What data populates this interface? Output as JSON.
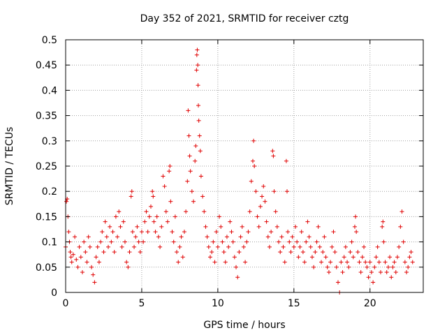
{
  "chart_data": {
    "type": "scatter",
    "title": "Day 352 of 2021, SRMTID for receiver cztg",
    "xlabel": "GPS time / hours",
    "ylabel": "SRMTID / TECUs",
    "xlim": [
      0,
      23.5
    ],
    "ylim": [
      0,
      0.5
    ],
    "xticks": [
      0,
      5,
      10,
      15,
      20
    ],
    "yticks": [
      0,
      0.05,
      0.1,
      0.15,
      0.2,
      0.25,
      0.3,
      0.35,
      0.4,
      0.45,
      0.5
    ],
    "xtick_labels": [
      "0",
      "5",
      "10",
      "15",
      "20"
    ],
    "ytick_labels": [
      "0",
      "0.05",
      "0.1",
      "0.15",
      "0.2",
      "0.25",
      "0.3",
      "0.35",
      "0.4",
      "0.45",
      "0.5"
    ],
    "grid": true,
    "marker": "+",
    "marker_color": "#e00000",
    "series": [
      {
        "name": "SRMTID",
        "points": [
          [
            0.0,
            0.09
          ],
          [
            0.05,
            0.18
          ],
          [
            0.1,
            0.185
          ],
          [
            0.15,
            0.15
          ],
          [
            0.2,
            0.12
          ],
          [
            0.25,
            0.1
          ],
          [
            0.3,
            0.08
          ],
          [
            0.35,
            0.07
          ],
          [
            0.4,
            0.06
          ],
          [
            0.5,
            0.075
          ],
          [
            0.6,
            0.11
          ],
          [
            0.7,
            0.065
          ],
          [
            0.8,
            0.05
          ],
          [
            0.9,
            0.09
          ],
          [
            1.0,
            0.07
          ],
          [
            1.1,
            0.04
          ],
          [
            1.2,
            0.1
          ],
          [
            1.3,
            0.08
          ],
          [
            1.4,
            0.06
          ],
          [
            1.5,
            0.11
          ],
          [
            1.6,
            0.09
          ],
          [
            1.7,
            0.05
          ],
          [
            1.8,
            0.035
          ],
          [
            1.9,
            0.02
          ],
          [
            2.0,
            0.07
          ],
          [
            2.1,
            0.09
          ],
          [
            2.2,
            0.06
          ],
          [
            2.3,
            0.1
          ],
          [
            2.4,
            0.12
          ],
          [
            2.5,
            0.08
          ],
          [
            2.6,
            0.14
          ],
          [
            2.7,
            0.11
          ],
          [
            2.8,
            0.09
          ],
          [
            2.9,
            0.13
          ],
          [
            3.0,
            0.1
          ],
          [
            3.1,
            0.12
          ],
          [
            3.2,
            0.08
          ],
          [
            3.3,
            0.15
          ],
          [
            3.4,
            0.11
          ],
          [
            3.5,
            0.16
          ],
          [
            3.6,
            0.13
          ],
          [
            3.7,
            0.09
          ],
          [
            3.8,
            0.14
          ],
          [
            3.9,
            0.1
          ],
          [
            4.0,
            0.06
          ],
          [
            4.1,
            0.05
          ],
          [
            4.2,
            0.08
          ],
          [
            4.3,
            0.19
          ],
          [
            4.35,
            0.2
          ],
          [
            4.4,
            0.12
          ],
          [
            4.5,
            0.09
          ],
          [
            4.6,
            0.11
          ],
          [
            4.7,
            0.13
          ],
          [
            4.8,
            0.1
          ],
          [
            4.9,
            0.08
          ],
          [
            5.0,
            0.12
          ],
          [
            5.1,
            0.1
          ],
          [
            5.2,
            0.14
          ],
          [
            5.3,
            0.16
          ],
          [
            5.4,
            0.12
          ],
          [
            5.5,
            0.15
          ],
          [
            5.6,
            0.17
          ],
          [
            5.7,
            0.2
          ],
          [
            5.75,
            0.19
          ],
          [
            5.8,
            0.14
          ],
          [
            5.9,
            0.12
          ],
          [
            6.0,
            0.15
          ],
          [
            6.1,
            0.11
          ],
          [
            6.2,
            0.09
          ],
          [
            6.3,
            0.13
          ],
          [
            6.4,
            0.23
          ],
          [
            6.5,
            0.21
          ],
          [
            6.6,
            0.16
          ],
          [
            6.7,
            0.14
          ],
          [
            6.8,
            0.24
          ],
          [
            6.85,
            0.25
          ],
          [
            6.9,
            0.18
          ],
          [
            7.0,
            0.12
          ],
          [
            7.1,
            0.1
          ],
          [
            7.2,
            0.15
          ],
          [
            7.3,
            0.08
          ],
          [
            7.4,
            0.06
          ],
          [
            7.5,
            0.09
          ],
          [
            7.6,
            0.11
          ],
          [
            7.7,
            0.07
          ],
          [
            7.8,
            0.12
          ],
          [
            7.9,
            0.16
          ],
          [
            8.0,
            0.22
          ],
          [
            8.05,
            0.36
          ],
          [
            8.1,
            0.31
          ],
          [
            8.15,
            0.27
          ],
          [
            8.2,
            0.24
          ],
          [
            8.3,
            0.2
          ],
          [
            8.4,
            0.18
          ],
          [
            8.5,
            0.26
          ],
          [
            8.55,
            0.29
          ],
          [
            8.6,
            0.44
          ],
          [
            8.62,
            0.47
          ],
          [
            8.65,
            0.48
          ],
          [
            8.68,
            0.45
          ],
          [
            8.7,
            0.41
          ],
          [
            8.72,
            0.37
          ],
          [
            8.75,
            0.34
          ],
          [
            8.8,
            0.31
          ],
          [
            8.85,
            0.28
          ],
          [
            8.9,
            0.23
          ],
          [
            9.0,
            0.19
          ],
          [
            9.1,
            0.16
          ],
          [
            9.2,
            0.13
          ],
          [
            9.3,
            0.11
          ],
          [
            9.4,
            0.09
          ],
          [
            9.5,
            0.07
          ],
          [
            9.6,
            0.08
          ],
          [
            9.7,
            0.1
          ],
          [
            9.8,
            0.06
          ],
          [
            9.9,
            0.12
          ],
          [
            10.0,
            0.09
          ],
          [
            10.1,
            0.15
          ],
          [
            10.2,
            0.13
          ],
          [
            10.3,
            0.1
          ],
          [
            10.4,
            0.08
          ],
          [
            10.5,
            0.06
          ],
          [
            10.6,
            0.11
          ],
          [
            10.7,
            0.09
          ],
          [
            10.8,
            0.14
          ],
          [
            10.9,
            0.12
          ],
          [
            11.0,
            0.1
          ],
          [
            11.1,
            0.07
          ],
          [
            11.2,
            0.05
          ],
          [
            11.3,
            0.03
          ],
          [
            11.4,
            0.08
          ],
          [
            11.5,
            0.11
          ],
          [
            11.6,
            0.13
          ],
          [
            11.7,
            0.09
          ],
          [
            11.8,
            0.06
          ],
          [
            11.9,
            0.1
          ],
          [
            12.0,
            0.12
          ],
          [
            12.1,
            0.16
          ],
          [
            12.2,
            0.22
          ],
          [
            12.3,
            0.26
          ],
          [
            12.35,
            0.3
          ],
          [
            12.4,
            0.25
          ],
          [
            12.5,
            0.2
          ],
          [
            12.6,
            0.15
          ],
          [
            12.7,
            0.13
          ],
          [
            12.8,
            0.17
          ],
          [
            12.9,
            0.19
          ],
          [
            13.0,
            0.21
          ],
          [
            13.1,
            0.18
          ],
          [
            13.2,
            0.14
          ],
          [
            13.3,
            0.11
          ],
          [
            13.4,
            0.09
          ],
          [
            13.5,
            0.12
          ],
          [
            13.6,
            0.28
          ],
          [
            13.65,
            0.27
          ],
          [
            13.7,
            0.2
          ],
          [
            13.8,
            0.16
          ],
          [
            13.9,
            0.13
          ],
          [
            14.0,
            0.1
          ],
          [
            14.1,
            0.08
          ],
          [
            14.2,
            0.11
          ],
          [
            14.3,
            0.09
          ],
          [
            14.4,
            0.06
          ],
          [
            14.5,
            0.26
          ],
          [
            14.55,
            0.2
          ],
          [
            14.6,
            0.12
          ],
          [
            14.7,
            0.1
          ],
          [
            14.8,
            0.08
          ],
          [
            14.9,
            0.11
          ],
          [
            15.0,
            0.09
          ],
          [
            15.1,
            0.13
          ],
          [
            15.2,
            0.1
          ],
          [
            15.3,
            0.07
          ],
          [
            15.4,
            0.09
          ],
          [
            15.5,
            0.12
          ],
          [
            15.6,
            0.08
          ],
          [
            15.7,
            0.06
          ],
          [
            15.8,
            0.1
          ],
          [
            15.9,
            0.14
          ],
          [
            16.0,
            0.11
          ],
          [
            16.1,
            0.09
          ],
          [
            16.2,
            0.07
          ],
          [
            16.3,
            0.05
          ],
          [
            16.4,
            0.08
          ],
          [
            16.5,
            0.1
          ],
          [
            16.6,
            0.13
          ],
          [
            16.7,
            0.09
          ],
          [
            16.8,
            0.06
          ],
          [
            16.9,
            0.08
          ],
          [
            17.0,
            0.11
          ],
          [
            17.1,
            0.07
          ],
          [
            17.2,
            0.05
          ],
          [
            17.3,
            0.04
          ],
          [
            17.4,
            0.06
          ],
          [
            17.5,
            0.09
          ],
          [
            17.6,
            0.12
          ],
          [
            17.7,
            0.08
          ],
          [
            17.8,
            0.05
          ],
          [
            17.9,
            0.02
          ],
          [
            18.0,
            0.0
          ],
          [
            18.1,
            0.06
          ],
          [
            18.2,
            0.04
          ],
          [
            18.3,
            0.07
          ],
          [
            18.4,
            0.09
          ],
          [
            18.5,
            0.06
          ],
          [
            18.6,
            0.05
          ],
          [
            18.7,
            0.08
          ],
          [
            18.8,
            0.1
          ],
          [
            18.9,
            0.07
          ],
          [
            19.0,
            0.13
          ],
          [
            19.05,
            0.15
          ],
          [
            19.1,
            0.12
          ],
          [
            19.2,
            0.08
          ],
          [
            19.3,
            0.06
          ],
          [
            19.4,
            0.04
          ],
          [
            19.5,
            0.07
          ],
          [
            19.6,
            0.09
          ],
          [
            19.7,
            0.06
          ],
          [
            19.8,
            0.05
          ],
          [
            19.9,
            0.03
          ],
          [
            20.0,
            0.06
          ],
          [
            20.1,
            0.04
          ],
          [
            20.2,
            0.02
          ],
          [
            20.3,
            0.05
          ],
          [
            20.4,
            0.07
          ],
          [
            20.5,
            0.09
          ],
          [
            20.6,
            0.06
          ],
          [
            20.7,
            0.04
          ],
          [
            20.8,
            0.13
          ],
          [
            20.85,
            0.14
          ],
          [
            20.9,
            0.1
          ],
          [
            21.0,
            0.06
          ],
          [
            21.1,
            0.04
          ],
          [
            21.2,
            0.05
          ],
          [
            21.3,
            0.07
          ],
          [
            21.4,
            0.03
          ],
          [
            21.5,
            0.05
          ],
          [
            21.6,
            0.06
          ],
          [
            21.7,
            0.04
          ],
          [
            21.8,
            0.07
          ],
          [
            21.9,
            0.09
          ],
          [
            22.0,
            0.13
          ],
          [
            22.1,
            0.16
          ],
          [
            22.2,
            0.1
          ],
          [
            22.3,
            0.06
          ],
          [
            22.4,
            0.04
          ],
          [
            22.5,
            0.05
          ],
          [
            22.6,
            0.07
          ],
          [
            22.7,
            0.08
          ],
          [
            22.8,
            0.06
          ]
        ]
      }
    ]
  }
}
